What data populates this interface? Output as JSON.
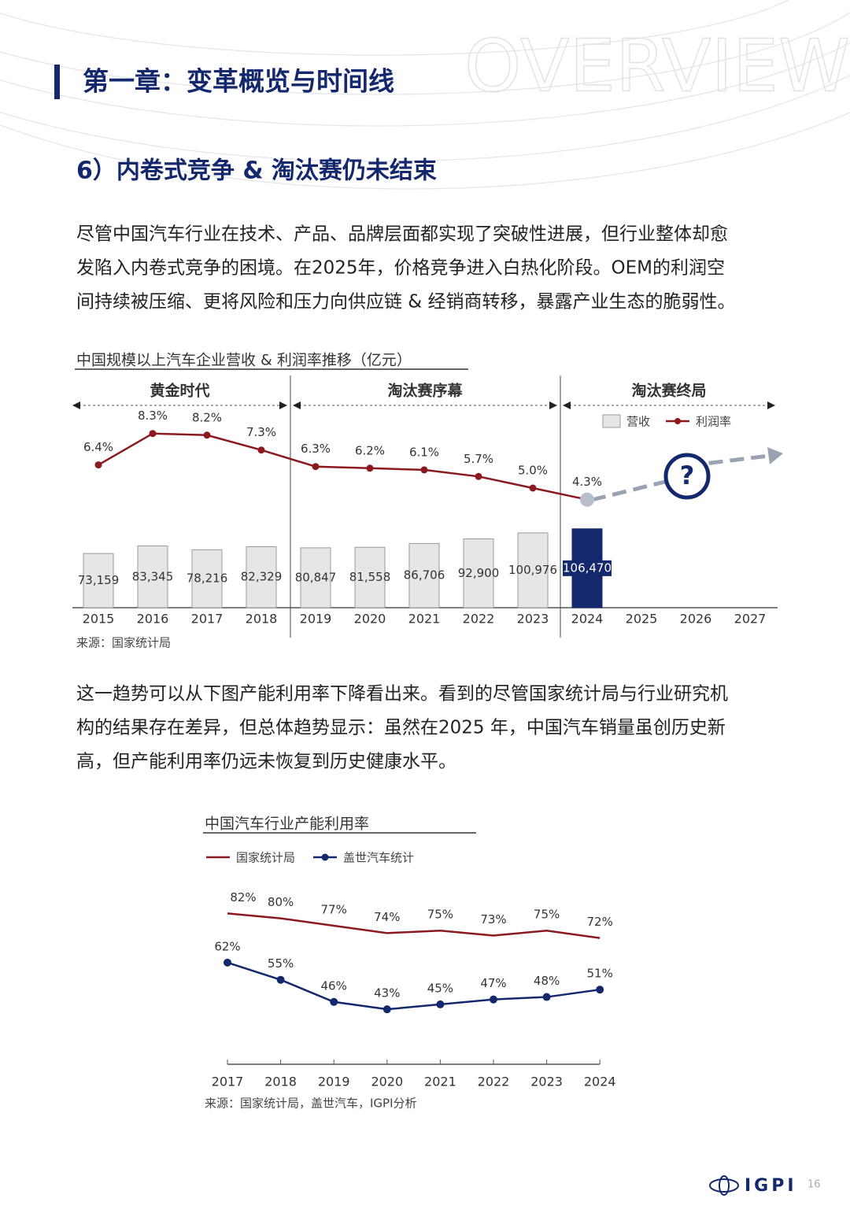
{
  "header": {
    "title": "第一章：变革概览与时间线",
    "watermark": "OVERVIEW"
  },
  "section_title": "6）内卷式竞争 & 淘汰赛仍未结束",
  "paragraphs": [
    [
      "尽管中国汽车行业在技术、产品、品牌层面都实现了突破性进展，但行业整体却愈",
      "发陷入内卷式竞争的困境。在2025年，价格竞争进入白热化阶段。OEM的利润空",
      "间持续被压缩、更将风险和压力向供应链 & 经销商转移，暴露产业生态的脆弱性。"
    ],
    [
      "这一趋势可以从下图产能利用率下降看出来。看到的尽管国家统计局与行业研究机",
      "构的结果存在差异，但总体趋势显示：虽然在2025 年，中国汽车销量虽创历史新",
      "高，但产能利用率仍远未恢复到历史健康水平。"
    ]
  ],
  "chart_data": [
    {
      "type": "bar-line",
      "title": "中国规模以上汽车企业营收 & 利润率推移（亿元）",
      "periods": [
        "黄金时代",
        "淘汰赛序幕",
        "淘汰赛终局"
      ],
      "categories": [
        "2015",
        "2016",
        "2017",
        "2018",
        "2019",
        "2020",
        "2021",
        "2022",
        "2023",
        "2024",
        "2025",
        "2026",
        "2027"
      ],
      "ylim": [
        0,
        273000
      ],
      "y2lim": [
        0,
        10
      ],
      "series": [
        {
          "name": "营收",
          "color": "#e6e6e6",
          "colors": [
            "#e6e6e6",
            "#e6e6e6",
            "#e6e6e6",
            "#e6e6e6",
            "#e6e6e6",
            "#e6e6e6",
            "#e6e6e6",
            "#e6e6e6",
            "#e6e6e6",
            "#14286e",
            null,
            null,
            null
          ],
          "values": [
            73159,
            83345,
            78216,
            82329,
            80847,
            81558,
            86706,
            92900,
            100976,
            106470,
            null,
            null,
            null
          ],
          "value_labels": [
            "73,159",
            "83,345",
            "78,216",
            "82,329",
            "80,847",
            "81,558",
            "86,706",
            "92,900",
            "100,976",
            "106,470",
            null,
            null,
            null
          ]
        },
        {
          "name": "利润率",
          "color": "#8b1a1f",
          "axis": "y2",
          "marker_colors": [
            "#8b1a1f",
            "#8b1a1f",
            "#8b1a1f",
            "#8b1a1f",
            "#8b1a1f",
            "#8b1a1f",
            "#8b1a1f",
            "#8b1a1f",
            "#8b1a1f",
            "#b8bfcc",
            null,
            null,
            null
          ],
          "values": [
            6.4,
            8.3,
            8.2,
            7.3,
            6.3,
            6.2,
            6.1,
            5.7,
            5.0,
            4.3,
            null,
            null,
            null
          ],
          "value_labels": [
            "6.4%",
            "8.3%",
            "8.2%",
            "7.3%",
            "6.3%",
            "6.2%",
            "6.1%",
            "5.7%",
            "5.0%",
            "4.3%",
            null,
            null,
            null
          ]
        }
      ],
      "source": "来源：国家统计局"
    },
    {
      "type": "line",
      "title": "中国汽车行业产能利用率",
      "categories": [
        "2017",
        "2018",
        "2019",
        "2020",
        "2021",
        "2022",
        "2023",
        "2024"
      ],
      "ylim": [
        20,
        85
      ],
      "series": [
        {
          "name": "国家统计局",
          "color": "#8b1a1f",
          "values": [
            82,
            80,
            77,
            74,
            75,
            73,
            75,
            72
          ],
          "value_labels": [
            "82%",
            "80%",
            "77%",
            "74%",
            "75%",
            "73%",
            "75%",
            "72%"
          ]
        },
        {
          "name": "盖世汽车统计",
          "color": "#14286e",
          "values": [
            62,
            55,
            46,
            43,
            45,
            47,
            48,
            51
          ],
          "value_labels": [
            "62%",
            "55%",
            "46%",
            "43%",
            "45%",
            "47%",
            "48%",
            "51%"
          ]
        }
      ],
      "source": "来源：国家统计局，盖世汽车，IGPI分析"
    }
  ],
  "footer": {
    "logo": "IGPI",
    "page": "16"
  }
}
